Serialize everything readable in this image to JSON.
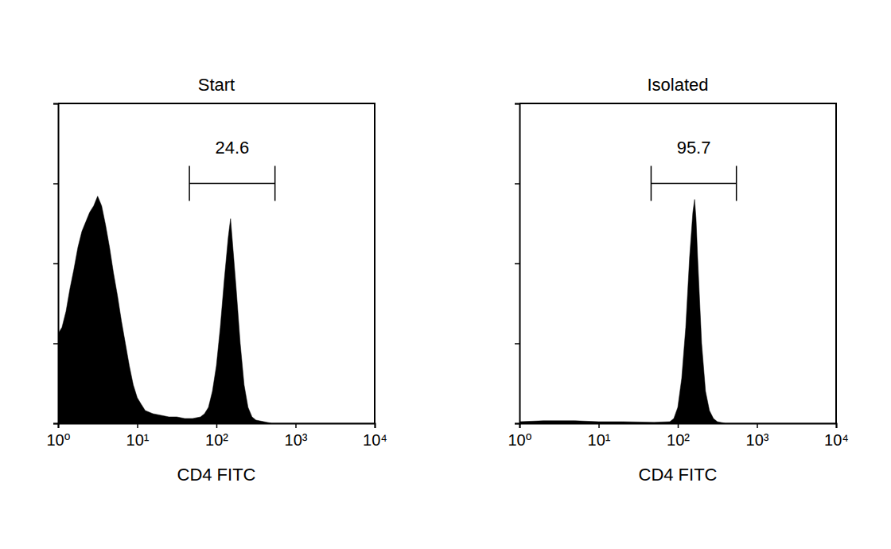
{
  "chart_data": [
    {
      "type": "area",
      "title": "Start",
      "x_label": "CD4 FITC",
      "log": "x",
      "color": "#000000",
      "tick_labels": "x",
      "xlim": [
        1,
        10000
      ],
      "xticks": [
        {
          "value": 1,
          "label": "10⁰"
        },
        {
          "value": 10,
          "label": "10¹"
        },
        {
          "value": 100,
          "label": "10²"
        },
        {
          "value": 1000,
          "label": "10³"
        },
        {
          "value": 10000,
          "label": "10⁴"
        }
      ],
      "ylim": [
        0,
        100
      ],
      "yticks": [
        0,
        25,
        50,
        75,
        100
      ],
      "x": [
        1,
        1.12,
        1.26,
        1.41,
        1.58,
        1.78,
        2,
        2.24,
        2.51,
        2.82,
        3.16,
        3.55,
        3.98,
        4.47,
        5.01,
        5.62,
        6.31,
        7.08,
        7.94,
        8.91,
        10,
        11.2,
        12.6,
        15.8,
        20,
        25.1,
        31.6,
        39.8,
        50.1,
        63.1,
        70.8,
        79.4,
        89.1,
        100,
        112,
        126,
        141,
        151,
        158,
        178,
        200,
        224,
        251,
        282,
        316,
        398,
        501,
        1000,
        10000
      ],
      "values": [
        28,
        30,
        35,
        42,
        48,
        55,
        60,
        63,
        66,
        68,
        71,
        68,
        62,
        55,
        47,
        40,
        32,
        25,
        18,
        12,
        8,
        6,
        4,
        3,
        2.5,
        2,
        2,
        1.5,
        1.5,
        2,
        3,
        5,
        10,
        18,
        30,
        45,
        58,
        64,
        58,
        42,
        25,
        12,
        5,
        2,
        1,
        0.5,
        0,
        0,
        0
      ],
      "annotations": [
        {
          "label": "24.6",
          "x_range": [
            45.6,
            550
          ],
          "y": 75
        }
      ]
    },
    {
      "type": "area",
      "title": "Isolated",
      "x_label": "CD4 FITC",
      "log": "x",
      "color": "#000000",
      "tick_labels": "x",
      "xlim": [
        1,
        10000
      ],
      "xticks": [
        {
          "value": 1,
          "label": "10⁰"
        },
        {
          "value": 10,
          "label": "10¹"
        },
        {
          "value": 100,
          "label": "10²"
        },
        {
          "value": 1000,
          "label": "10³"
        },
        {
          "value": 10000,
          "label": "10⁴"
        }
      ],
      "ylim": [
        0,
        100
      ],
      "yticks": [
        0,
        25,
        50,
        75,
        100
      ],
      "x": [
        1,
        2,
        5,
        10,
        20,
        50,
        79.4,
        89.1,
        100,
        112,
        126,
        141,
        155,
        163,
        170,
        178,
        200,
        224,
        251,
        282,
        316,
        398,
        1000,
        10000
      ],
      "values": [
        0.5,
        0.8,
        0.8,
        0.5,
        0.5,
        0.3,
        0.5,
        1.5,
        5,
        14,
        30,
        52,
        66,
        70,
        64,
        52,
        25,
        10,
        4,
        1.5,
        0.5,
        0,
        0,
        0
      ],
      "annotations": [
        {
          "label": "95.7",
          "x_range": [
            46,
            550
          ],
          "y": 75
        }
      ]
    }
  ]
}
